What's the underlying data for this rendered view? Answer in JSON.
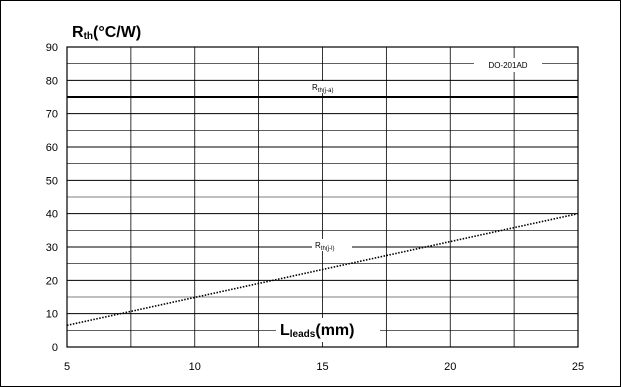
{
  "chart_data": {
    "type": "line",
    "title": "",
    "ylabel": {
      "main": "R",
      "sub": "th",
      "rest": "(°C/W)"
    },
    "xlabel": {
      "main": "L",
      "sub": "leads",
      "rest": "(mm)"
    },
    "xlim": [
      5,
      25
    ],
    "ylim": [
      0,
      90
    ],
    "x_ticks": [
      5,
      10,
      15,
      20,
      25
    ],
    "y_ticks": [
      0,
      10,
      20,
      30,
      40,
      50,
      60,
      70,
      80,
      90
    ],
    "x_minor_step": 2.5,
    "y_minor_step": 5,
    "grid": true,
    "package_label": "DO-201AD",
    "series": [
      {
        "name_main": "R",
        "name_sub": "th(j-a)",
        "style": "solid",
        "x": [
          5,
          25
        ],
        "y": [
          75,
          75
        ]
      },
      {
        "name_main": "R",
        "name_sub": "th(j-l)",
        "style": "dotted",
        "x": [
          5,
          25
        ],
        "y": [
          6.5,
          40
        ]
      }
    ]
  }
}
